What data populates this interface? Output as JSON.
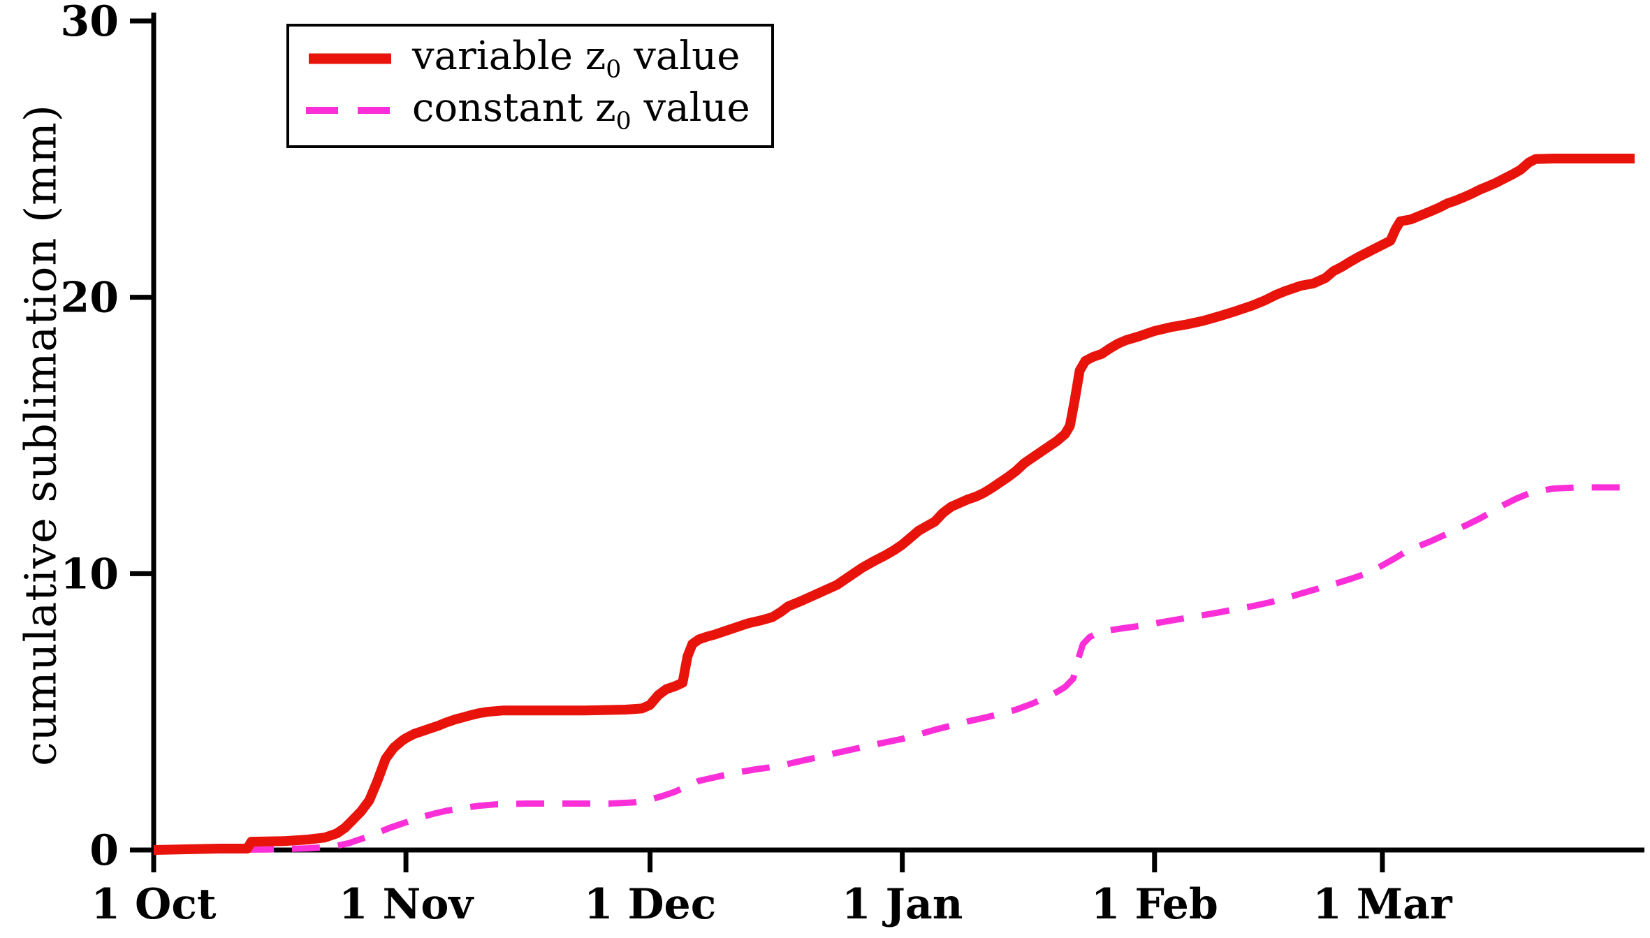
{
  "chart_data": {
    "type": "line",
    "title": "",
    "xlabel": "",
    "ylabel": "cumulative sublimation (mm)",
    "ylim": [
      0,
      30
    ],
    "yticks": [
      0,
      10,
      20,
      30
    ],
    "xlim_days": [
      0,
      182
    ],
    "xticks": [
      {
        "day": 0,
        "label": "1 Oct"
      },
      {
        "day": 31,
        "label": "1 Nov"
      },
      {
        "day": 61,
        "label": "1 Dec"
      },
      {
        "day": 92,
        "label": "1 Jan"
      },
      {
        "day": 123,
        "label": "1 Feb"
      },
      {
        "day": 151,
        "label": "1 Mar"
      }
    ],
    "grid": false,
    "legend": {
      "position": "top-left-inside",
      "entries": [
        {
          "label_pre": "variable z",
          "label_sub": "0",
          "label_post": " value",
          "color": "#e8130b",
          "style": "solid"
        },
        {
          "label_pre": "constant z",
          "label_sub": "0",
          "label_post": " value",
          "color": "#fb2ed8",
          "style": "dashed"
        }
      ]
    },
    "series": [
      {
        "id": "constant-z0",
        "name": "constant z0 value",
        "color": "#fb2ed8",
        "dash": "dashed",
        "width": 9,
        "points": [
          [
            0,
            0
          ],
          [
            14,
            0.02
          ],
          [
            19,
            0.06
          ],
          [
            22,
            0.12
          ],
          [
            24,
            0.25
          ],
          [
            26,
            0.45
          ],
          [
            27.5,
            0.62
          ],
          [
            29,
            0.8
          ],
          [
            30.5,
            0.95
          ],
          [
            31.5,
            1.05
          ],
          [
            33,
            1.2
          ],
          [
            34.5,
            1.32
          ],
          [
            36,
            1.42
          ],
          [
            38,
            1.52
          ],
          [
            40,
            1.6
          ],
          [
            42,
            1.65
          ],
          [
            46,
            1.68
          ],
          [
            51,
            1.68
          ],
          [
            56,
            1.68
          ],
          [
            59,
            1.72
          ],
          [
            61,
            1.82
          ],
          [
            62.5,
            1.95
          ],
          [
            64,
            2.1
          ],
          [
            65.5,
            2.3
          ],
          [
            67,
            2.5
          ],
          [
            68.5,
            2.6
          ],
          [
            70,
            2.7
          ],
          [
            72,
            2.82
          ],
          [
            74,
            2.92
          ],
          [
            76,
            3.0
          ],
          [
            78,
            3.12
          ],
          [
            80,
            3.25
          ],
          [
            82,
            3.38
          ],
          [
            84,
            3.52
          ],
          [
            86,
            3.65
          ],
          [
            88,
            3.78
          ],
          [
            90,
            3.9
          ],
          [
            92,
            4.02
          ],
          [
            94,
            4.18
          ],
          [
            96,
            4.35
          ],
          [
            98,
            4.5
          ],
          [
            100,
            4.65
          ],
          [
            102,
            4.78
          ],
          [
            104,
            4.92
          ],
          [
            106,
            5.08
          ],
          [
            108,
            5.3
          ],
          [
            109.5,
            5.5
          ],
          [
            111,
            5.72
          ],
          [
            112,
            5.9
          ],
          [
            113,
            6.2
          ],
          [
            113.6,
            6.9
          ],
          [
            114.2,
            7.45
          ],
          [
            115,
            7.7
          ],
          [
            116,
            7.85
          ],
          [
            117.5,
            7.95
          ],
          [
            119,
            8.02
          ],
          [
            121,
            8.1
          ],
          [
            123,
            8.2
          ],
          [
            125,
            8.3
          ],
          [
            127,
            8.4
          ],
          [
            129,
            8.5
          ],
          [
            131,
            8.6
          ],
          [
            133,
            8.72
          ],
          [
            135,
            8.82
          ],
          [
            137,
            8.95
          ],
          [
            139,
            9.1
          ],
          [
            141,
            9.28
          ],
          [
            143,
            9.45
          ],
          [
            145,
            9.62
          ],
          [
            147,
            9.8
          ],
          [
            149,
            10.0
          ],
          [
            151,
            10.3
          ],
          [
            152.5,
            10.55
          ],
          [
            154,
            10.82
          ],
          [
            155.5,
            11.0
          ],
          [
            157,
            11.18
          ],
          [
            158.5,
            11.38
          ],
          [
            160,
            11.58
          ],
          [
            161.5,
            11.78
          ],
          [
            163,
            12.0
          ],
          [
            164.5,
            12.25
          ],
          [
            166,
            12.5
          ],
          [
            167.5,
            12.72
          ],
          [
            169,
            12.9
          ],
          [
            170.5,
            13.0
          ],
          [
            172,
            13.08
          ],
          [
            175,
            13.12
          ],
          [
            182,
            13.12
          ]
        ]
      },
      {
        "id": "variable-z0",
        "name": "variable z0 value",
        "color": "#e8130b",
        "dash": "solid",
        "width": 14,
        "points": [
          [
            0,
            0
          ],
          [
            8,
            0.05
          ],
          [
            11.5,
            0.05
          ],
          [
            12,
            0.3
          ],
          [
            16,
            0.32
          ],
          [
            19,
            0.38
          ],
          [
            21,
            0.45
          ],
          [
            22.5,
            0.6
          ],
          [
            23.5,
            0.8
          ],
          [
            24.5,
            1.1
          ],
          [
            25.5,
            1.4
          ],
          [
            26.5,
            1.8
          ],
          [
            27.5,
            2.5
          ],
          [
            28.5,
            3.3
          ],
          [
            29.5,
            3.7
          ],
          [
            30.5,
            3.95
          ],
          [
            31,
            4.05
          ],
          [
            32,
            4.2
          ],
          [
            33,
            4.3
          ],
          [
            34,
            4.4
          ],
          [
            35,
            4.5
          ],
          [
            36,
            4.62
          ],
          [
            37,
            4.72
          ],
          [
            38,
            4.8
          ],
          [
            39,
            4.88
          ],
          [
            40,
            4.95
          ],
          [
            41,
            5.0
          ],
          [
            43,
            5.05
          ],
          [
            48,
            5.05
          ],
          [
            53,
            5.05
          ],
          [
            58,
            5.08
          ],
          [
            60,
            5.12
          ],
          [
            61,
            5.25
          ],
          [
            62,
            5.6
          ],
          [
            63,
            5.82
          ],
          [
            64,
            5.92
          ],
          [
            65,
            6.05
          ],
          [
            65.6,
            7.0
          ],
          [
            66.2,
            7.45
          ],
          [
            67,
            7.62
          ],
          [
            68,
            7.72
          ],
          [
            69,
            7.8
          ],
          [
            70,
            7.9
          ],
          [
            71.5,
            8.05
          ],
          [
            73,
            8.2
          ],
          [
            74.5,
            8.3
          ],
          [
            76,
            8.42
          ],
          [
            77,
            8.6
          ],
          [
            78,
            8.82
          ],
          [
            79.5,
            9.0
          ],
          [
            81,
            9.2
          ],
          [
            82.5,
            9.4
          ],
          [
            84,
            9.6
          ],
          [
            85.5,
            9.9
          ],
          [
            87,
            10.2
          ],
          [
            88.5,
            10.45
          ],
          [
            90,
            10.68
          ],
          [
            91,
            10.85
          ],
          [
            92,
            11.05
          ],
          [
            93,
            11.3
          ],
          [
            94,
            11.55
          ],
          [
            95,
            11.72
          ],
          [
            96,
            11.88
          ],
          [
            97,
            12.2
          ],
          [
            98,
            12.42
          ],
          [
            99,
            12.55
          ],
          [
            100,
            12.68
          ],
          [
            101,
            12.78
          ],
          [
            102,
            12.92
          ],
          [
            103,
            13.1
          ],
          [
            104,
            13.3
          ],
          [
            105,
            13.5
          ],
          [
            106,
            13.72
          ],
          [
            107,
            14.0
          ],
          [
            108,
            14.2
          ],
          [
            109,
            14.4
          ],
          [
            110,
            14.6
          ],
          [
            111,
            14.8
          ],
          [
            112,
            15.05
          ],
          [
            112.6,
            15.35
          ],
          [
            113.2,
            16.3
          ],
          [
            113.8,
            17.35
          ],
          [
            114.5,
            17.7
          ],
          [
            115.5,
            17.85
          ],
          [
            116.5,
            17.95
          ],
          [
            117.5,
            18.15
          ],
          [
            118.5,
            18.32
          ],
          [
            119.5,
            18.45
          ],
          [
            121,
            18.58
          ],
          [
            122,
            18.68
          ],
          [
            123,
            18.78
          ],
          [
            125,
            18.92
          ],
          [
            127,
            19.02
          ],
          [
            129,
            19.15
          ],
          [
            131,
            19.32
          ],
          [
            133,
            19.5
          ],
          [
            135,
            19.7
          ],
          [
            136.5,
            19.88
          ],
          [
            138,
            20.1
          ],
          [
            139,
            20.22
          ],
          [
            140,
            20.32
          ],
          [
            141,
            20.42
          ],
          [
            142.5,
            20.5
          ],
          [
            144,
            20.7
          ],
          [
            145,
            20.95
          ],
          [
            146,
            21.1
          ],
          [
            147,
            21.28
          ],
          [
            148,
            21.45
          ],
          [
            149,
            21.6
          ],
          [
            150,
            21.75
          ],
          [
            151,
            21.9
          ],
          [
            152,
            22.05
          ],
          [
            152.6,
            22.45
          ],
          [
            153.2,
            22.75
          ],
          [
            154.5,
            22.82
          ],
          [
            156,
            23.0
          ],
          [
            157,
            23.12
          ],
          [
            158,
            23.25
          ],
          [
            159,
            23.4
          ],
          [
            160,
            23.5
          ],
          [
            161,
            23.62
          ],
          [
            162,
            23.75
          ],
          [
            163,
            23.9
          ],
          [
            164,
            24.02
          ],
          [
            165,
            24.15
          ],
          [
            166,
            24.3
          ],
          [
            167,
            24.45
          ],
          [
            168,
            24.62
          ],
          [
            169,
            24.88
          ],
          [
            169.8,
            25.0
          ],
          [
            172,
            25.02
          ],
          [
            176,
            25.02
          ],
          [
            182,
            25.02
          ]
        ]
      }
    ]
  }
}
